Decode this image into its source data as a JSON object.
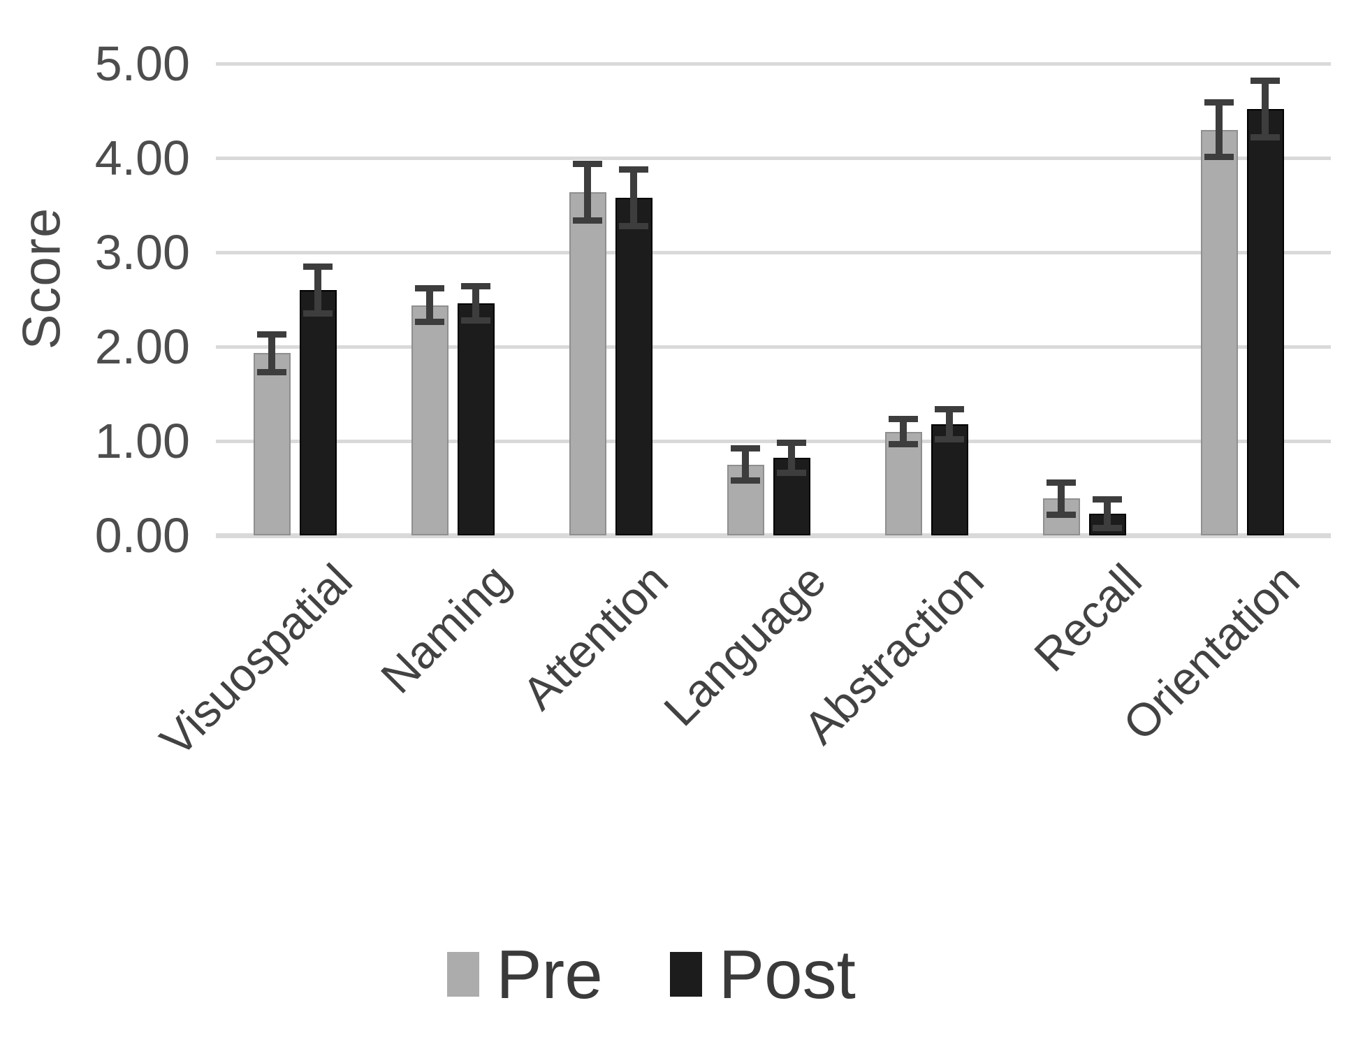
{
  "chart_data": {
    "type": "bar",
    "title": "",
    "xlabel": "",
    "ylabel": "Score",
    "ylim": [
      0,
      5
    ],
    "grid": true,
    "legend_position": "bottom",
    "yticks": [
      {
        "label": "0.00",
        "value": 0
      },
      {
        "label": "1.00",
        "value": 1
      },
      {
        "label": "2.00",
        "value": 2
      },
      {
        "label": "3.00",
        "value": 3
      },
      {
        "label": "4.00",
        "value": 4
      },
      {
        "label": "5.00",
        "value": 5
      }
    ],
    "categories": [
      "Visuospatial",
      "Naming",
      "Attention",
      "Language",
      "Abstraction",
      "Recall",
      "Orientation"
    ],
    "series": [
      {
        "name": "Pre",
        "color": "#acacac",
        "values": [
          1.93,
          2.44,
          3.64,
          0.75,
          1.1,
          0.39,
          4.3
        ],
        "errors": [
          0.2,
          0.18,
          0.3,
          0.17,
          0.13,
          0.17,
          0.29
        ]
      },
      {
        "name": "Post",
        "color": "#1c1c1c",
        "values": [
          2.6,
          2.46,
          3.58,
          0.82,
          1.18,
          0.23,
          4.52
        ],
        "errors": [
          0.25,
          0.18,
          0.3,
          0.16,
          0.16,
          0.15,
          0.3
        ]
      }
    ],
    "colors": {
      "gridline": "#d9d9d9",
      "error_bar": "#3d3d3d",
      "axis_text": "#4d4d4d"
    }
  }
}
